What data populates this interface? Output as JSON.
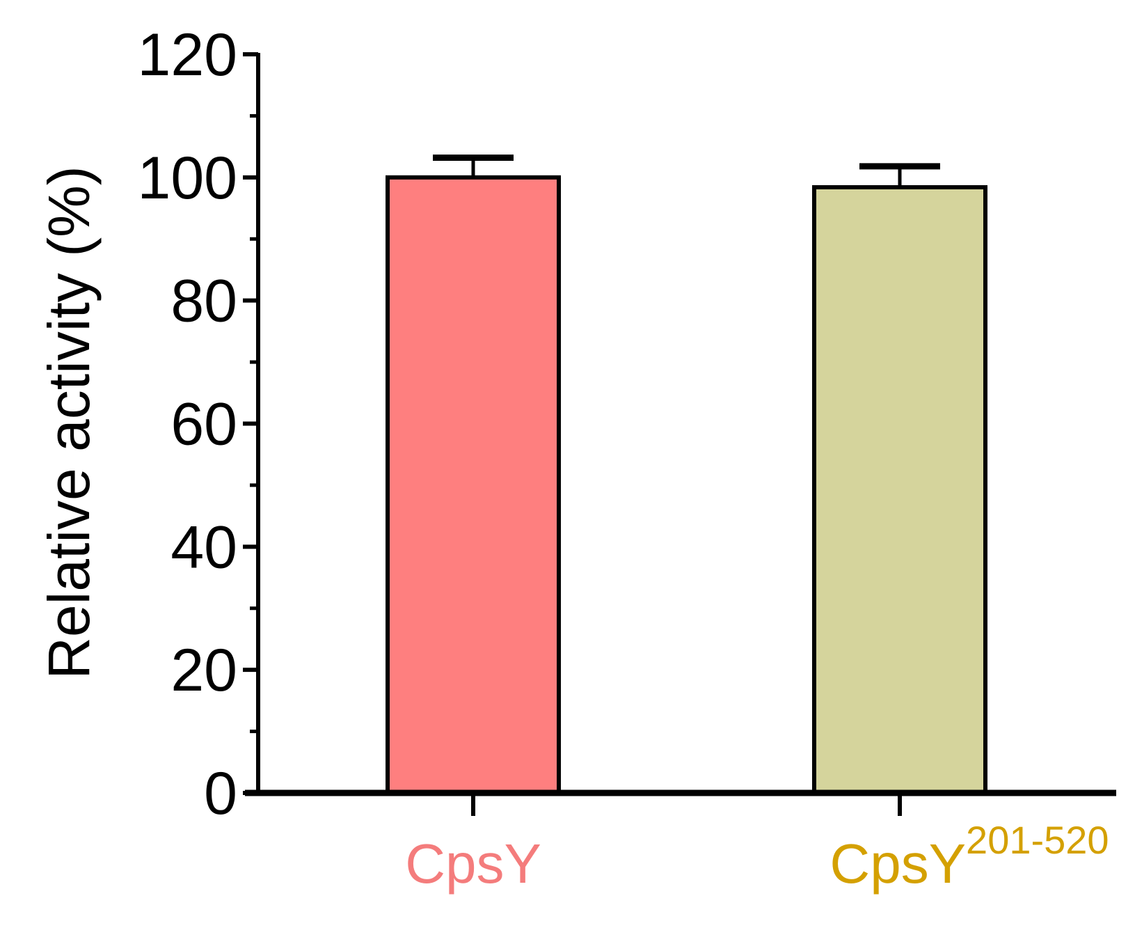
{
  "chart_data": {
    "type": "bar",
    "title": "",
    "xlabel": "",
    "ylabel": "Relative activity (%)",
    "ylim": [
      0,
      120
    ],
    "yticks": [
      "0",
      "20",
      "40",
      "60",
      "80",
      "100",
      "120"
    ],
    "minor_tick_step": 10,
    "grid": false,
    "categories": [
      {
        "label": "CpsY",
        "superscript": "",
        "label_color": "#f47c7c"
      },
      {
        "label": "CpsY",
        "superscript": "201-520",
        "label_color": "#d4a000"
      }
    ],
    "values": [
      100.0,
      98.4
    ],
    "errors": [
      3.2,
      3.4
    ],
    "bar_colors": [
      "#fe7f7f",
      "#d5d49c"
    ],
    "edge_color": "#000000"
  }
}
